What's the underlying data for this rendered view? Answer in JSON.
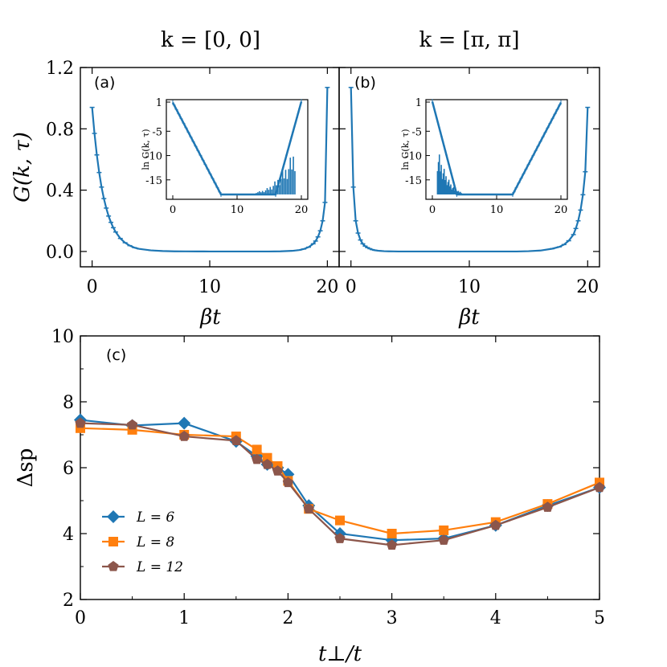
{
  "chart_data": [
    {
      "id": "a",
      "type": "line",
      "panel_label": "(a)",
      "title": "k = [0, 0]",
      "xlabel": "βt",
      "ylabel": "G(k, τ)",
      "xlim": [
        -1,
        21
      ],
      "ylim": [
        -0.1,
        1.2
      ],
      "xticks": [
        "0",
        "10",
        "20"
      ],
      "yticks": [
        "0.0",
        "0.4",
        "0.8",
        "1.2"
      ],
      "color": "#1f77b4",
      "x": [
        0,
        0.2,
        0.4,
        0.6,
        0.8,
        1.0,
        1.2,
        1.4,
        1.6,
        1.8,
        2.0,
        2.4,
        2.8,
        3.2,
        3.6,
        4,
        5,
        6,
        7,
        8,
        9,
        10,
        11,
        12,
        13,
        14,
        15,
        16,
        17,
        17.6,
        18.0,
        18.4,
        18.8,
        19.0,
        19.2,
        19.4,
        19.6,
        19.8,
        20.0
      ],
      "y": [
        0.94,
        0.77,
        0.63,
        0.515,
        0.42,
        0.345,
        0.283,
        0.231,
        0.19,
        0.155,
        0.127,
        0.085,
        0.057,
        0.038,
        0.025,
        0.017,
        0.007,
        0.003,
        0.001,
        0.0005,
        0.0002,
        0,
        0,
        0,
        0,
        0,
        0,
        0.001,
        0.004,
        0.009,
        0.016,
        0.028,
        0.05,
        0.068,
        0.095,
        0.135,
        0.2,
        0.32,
        1.07
      ],
      "inset": {
        "ylabel": "ln G(k, τ)",
        "xlim": [
          -1,
          21
        ],
        "ylim": [
          -19,
          1.5
        ],
        "xticks": [
          "0",
          "10",
          "20"
        ],
        "yticks": [
          "1",
          "-5",
          "-10",
          "-15"
        ],
        "x": [
          0,
          7.5,
          16,
          20
        ],
        "y": [
          0.9,
          -18,
          -18,
          1.1
        ],
        "noise_x_range": [
          13,
          19
        ]
      }
    },
    {
      "id": "b",
      "type": "line",
      "panel_label": "(b)",
      "title": "k = [π, π]",
      "xlabel": "βt",
      "ylabel": "",
      "xlim": [
        -1,
        21
      ],
      "ylim": [
        -0.1,
        1.2
      ],
      "xticks": [
        "0",
        "10",
        "20"
      ],
      "yticks": [],
      "color": "#1f77b4",
      "x": [
        0,
        0.2,
        0.4,
        0.6,
        0.8,
        1.0,
        1.2,
        1.4,
        1.6,
        1.8,
        2.0,
        2.4,
        2.8,
        3.2,
        3.6,
        4,
        5,
        6,
        7,
        8,
        9,
        10,
        11,
        12,
        13,
        14,
        15,
        16,
        17,
        17.6,
        18.0,
        18.4,
        18.8,
        19.0,
        19.2,
        19.4,
        19.6,
        19.8,
        20.0
      ],
      "y": [
        1.07,
        0.42,
        0.2,
        0.12,
        0.075,
        0.05,
        0.035,
        0.025,
        0.018,
        0.012,
        0.008,
        0.004,
        0.002,
        0.001,
        0.0005,
        0,
        0,
        0,
        0,
        0,
        0,
        0,
        0,
        0,
        0,
        0,
        0.002,
        0.006,
        0.018,
        0.03,
        0.045,
        0.07,
        0.11,
        0.15,
        0.2,
        0.27,
        0.37,
        0.52,
        0.94
      ],
      "inset": {
        "ylabel": "ln G(k, τ)",
        "xlim": [
          -1,
          21
        ],
        "ylim": [
          -19,
          1.5
        ],
        "xticks": [
          "0",
          "10",
          "20"
        ],
        "yticks": [
          "1",
          "-5",
          "-10",
          "-15"
        ],
        "x": [
          0,
          3.8,
          12.5,
          20
        ],
        "y": [
          1.1,
          -18,
          -18,
          0.9
        ],
        "noise_x_range": [
          0.8,
          4.5
        ]
      }
    },
    {
      "id": "c",
      "type": "line",
      "panel_label": "(c)",
      "title": "",
      "xlabel": "t⊥/t",
      "ylabel": "Δsp",
      "xlim": [
        0,
        5
      ],
      "ylim": [
        2,
        10
      ],
      "xticks": [
        "0",
        "1",
        "2",
        "3",
        "4",
        "5"
      ],
      "yticks": [
        "2",
        "4",
        "6",
        "8",
        "10"
      ],
      "legend_position": "lower-left",
      "series": [
        {
          "name": "L = 6",
          "color": "#1f77b4",
          "marker": "diamond",
          "x": [
            0,
            0.5,
            1,
            1.5,
            1.7,
            1.8,
            1.9,
            2.0,
            2.2,
            2.5,
            3.0,
            3.5,
            4.0,
            4.5,
            5.0
          ],
          "values": [
            7.45,
            7.28,
            7.35,
            6.8,
            6.35,
            6.1,
            6.0,
            5.8,
            4.85,
            4.0,
            3.8,
            3.85,
            4.25,
            4.85,
            5.4
          ]
        },
        {
          "name": "L = 8",
          "color": "#ff7f0e",
          "marker": "square",
          "x": [
            0,
            0.5,
            1,
            1.5,
            1.7,
            1.8,
            1.9,
            2.0,
            2.2,
            2.5,
            3.0,
            3.5,
            4.0,
            4.5,
            5.0
          ],
          "values": [
            7.2,
            7.15,
            7.0,
            6.95,
            6.55,
            6.3,
            6.05,
            5.6,
            4.75,
            4.4,
            4.0,
            4.1,
            4.35,
            4.9,
            5.55
          ]
        },
        {
          "name": "L = 12",
          "color": "#8c564b",
          "marker": "pentagon",
          "x": [
            0,
            0.5,
            1,
            1.5,
            1.7,
            1.8,
            1.9,
            2.0,
            2.2,
            2.5,
            3.0,
            3.5,
            4.0,
            4.5,
            5.0
          ],
          "values": [
            7.35,
            7.3,
            6.95,
            6.82,
            6.25,
            6.1,
            5.9,
            5.55,
            4.75,
            3.85,
            3.65,
            3.8,
            4.25,
            4.8,
            5.4
          ]
        }
      ]
    }
  ]
}
